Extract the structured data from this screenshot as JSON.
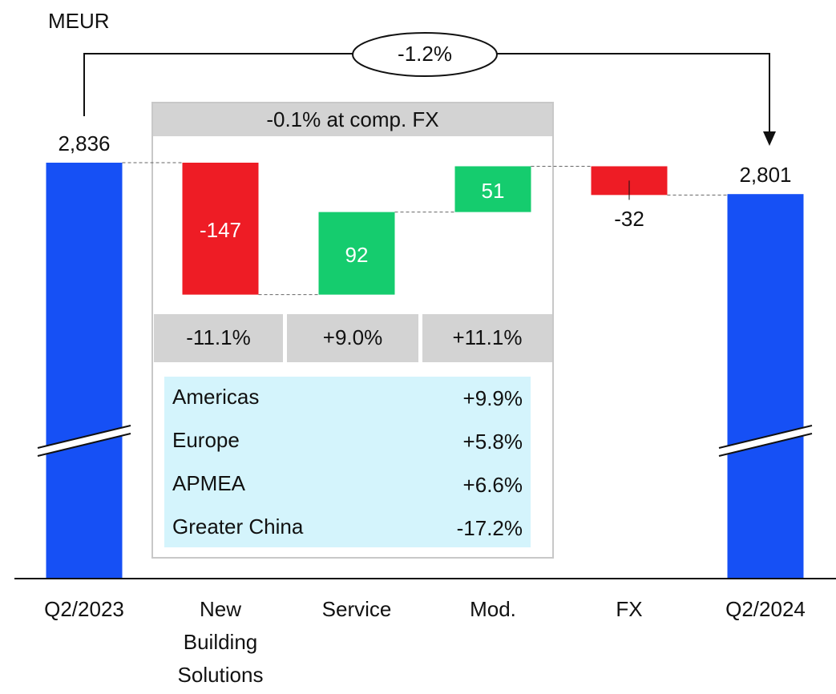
{
  "chart_data": {
    "type": "waterfall",
    "unit_label": "MEUR",
    "categories": [
      "Q2/2023",
      "New Building Solutions",
      "Service",
      "Mod.",
      "FX",
      "Q2/2024"
    ],
    "values": [
      2836,
      -147,
      92,
      51,
      -32,
      2801
    ],
    "value_labels": [
      "2,836",
      "-147",
      "92",
      "51",
      "-32",
      "2,801"
    ],
    "colors": [
      "#1650f5",
      "#ee1c25",
      "#15cc6e",
      "#15cc6e",
      "#ee1c25",
      "#1650f5"
    ],
    "total_change": "-1.2%",
    "comp_fx_change": "-0.1% at comp. FX",
    "segment_changes": [
      "-11.1%",
      "+9.0%",
      "+11.1%"
    ],
    "regions": [
      {
        "name": "Americas",
        "change": "+9.9%"
      },
      {
        "name": "Europe",
        "change": "+5.8%"
      },
      {
        "name": "APMEA",
        "change": "+6.6%"
      },
      {
        "name": "Greater China",
        "change": "-17.2%"
      }
    ]
  }
}
